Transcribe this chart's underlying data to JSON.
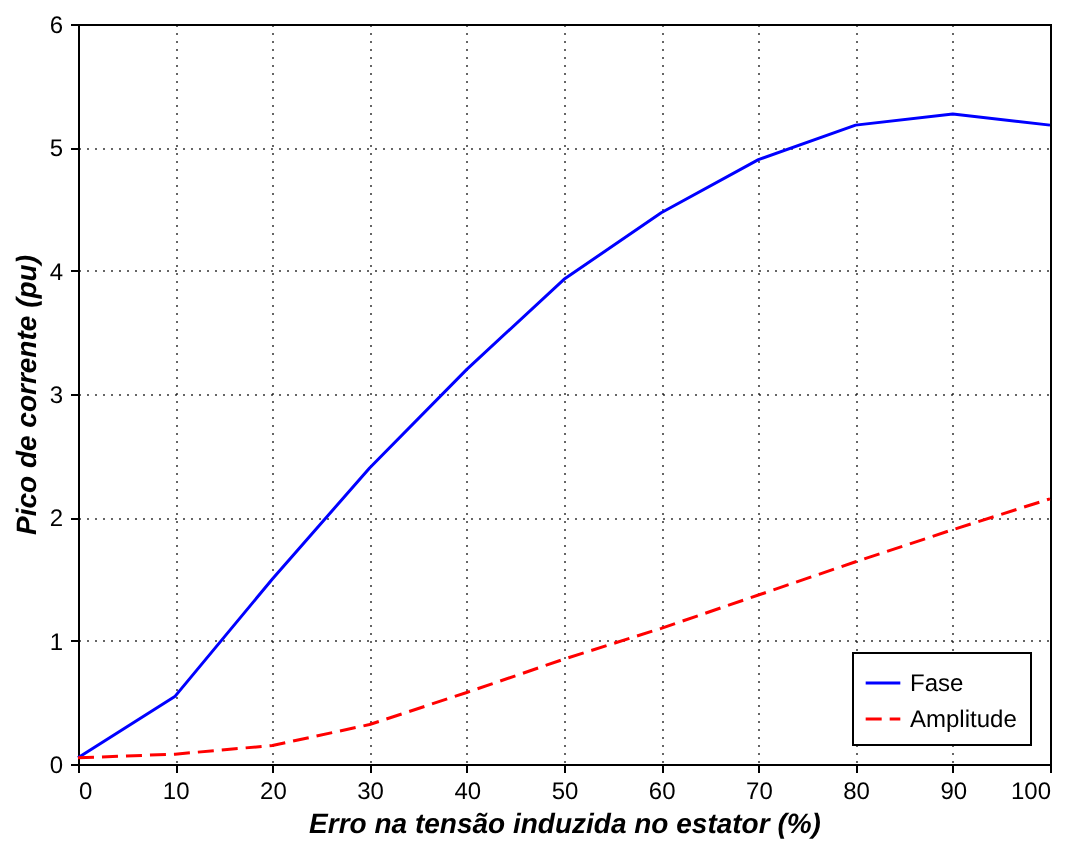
{
  "chart_data": {
    "type": "line",
    "xlabel": "Erro na tensão induzida no estator (%)",
    "ylabel": "Pico de corrente (pu)",
    "x": [
      0,
      10,
      20,
      30,
      40,
      50,
      60,
      70,
      80,
      90,
      100
    ],
    "series": [
      {
        "name": "Fase",
        "color": "#0000ff",
        "line_style": "solid",
        "values": [
          0.05,
          0.55,
          1.5,
          2.4,
          3.2,
          3.93,
          4.47,
          4.9,
          5.18,
          5.27,
          5.18
        ]
      },
      {
        "name": "Amplitude",
        "color": "#ff0000",
        "line_style": "dashed",
        "values": [
          0.05,
          0.08,
          0.15,
          0.32,
          0.58,
          0.85,
          1.1,
          1.37,
          1.64,
          1.9,
          2.15
        ]
      }
    ],
    "xlim": [
      0,
      100
    ],
    "xticks": [
      0,
      10,
      20,
      30,
      40,
      50,
      60,
      70,
      80,
      90,
      100
    ],
    "ylim": [
      0,
      6
    ],
    "yticks": [
      0,
      1,
      2,
      3,
      4,
      5,
      6
    ],
    "grid": true,
    "legend": "bottom right",
    "marker": "none"
  }
}
